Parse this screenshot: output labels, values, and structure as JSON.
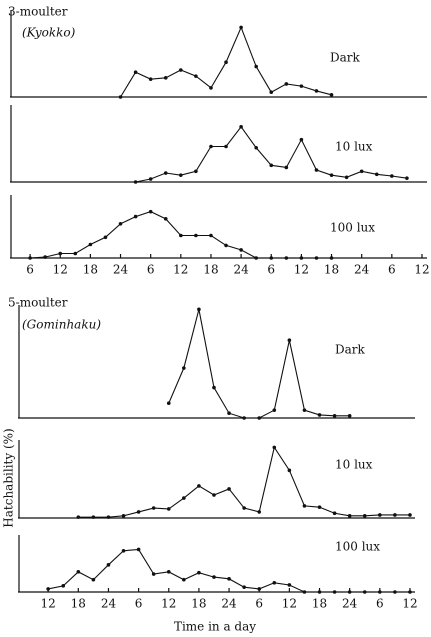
{
  "chart_data": [
    {
      "type": "line",
      "title": "3-moulter",
      "subtitle": "(Kyokko)",
      "label": "Dark",
      "x": [
        24,
        27,
        30,
        33,
        36,
        39,
        42,
        45,
        48,
        51,
        54,
        57,
        60,
        63,
        66
      ],
      "values": [
        0,
        5.7,
        4.1,
        4.4,
        6.2,
        4.8,
        2.1,
        8,
        16,
        7,
        1.1,
        3,
        2.5,
        1.4,
        0.5
      ],
      "xlim": [
        2,
        85
      ],
      "ylim": [
        0,
        20
      ]
    },
    {
      "type": "line",
      "label": "10 lux",
      "x": [
        27,
        30,
        33,
        36,
        39,
        42,
        45,
        48,
        51,
        54,
        57,
        60,
        63,
        66,
        69,
        72,
        75,
        78,
        81
      ],
      "values": [
        0,
        0.7,
        2.1,
        1.6,
        2.5,
        8.3,
        8.3,
        12.9,
        8,
        3.9,
        3.4,
        9.9,
        2.8,
        1.6,
        1.1,
        2.5,
        1.8,
        1.4,
        0.9
      ],
      "xlim": [
        2,
        85
      ],
      "ylim": [
        0,
        18
      ]
    },
    {
      "type": "line",
      "label": "100 lux",
      "x": [
        6,
        9,
        12,
        15,
        18,
        21,
        24,
        27,
        30,
        33,
        36,
        39,
        42,
        45,
        48,
        51,
        54,
        57,
        60,
        63,
        66
      ],
      "values": [
        0,
        0.2,
        1,
        1,
        3,
        4.6,
        7.6,
        9.2,
        10.3,
        8.7,
        5,
        5,
        5,
        2.8,
        1.8,
        0,
        0,
        0,
        0,
        0,
        0
      ],
      "xlim": [
        2,
        85
      ],
      "ylim": [
        0,
        14
      ],
      "xticks": [
        {
          "value": 6,
          "label": "6"
        },
        {
          "value": 12,
          "label": "12"
        },
        {
          "value": 18,
          "label": "18"
        },
        {
          "value": 24,
          "label": "24"
        },
        {
          "value": 30,
          "label": "6"
        },
        {
          "value": 36,
          "label": "12"
        },
        {
          "value": 42,
          "label": "18"
        },
        {
          "value": 48,
          "label": "24"
        },
        {
          "value": 54,
          "label": "6"
        },
        {
          "value": 60,
          "label": "12"
        },
        {
          "value": 66,
          "label": "18"
        },
        {
          "value": 72,
          "label": "24"
        },
        {
          "value": 78,
          "label": "6"
        },
        {
          "value": 84,
          "label": "12"
        }
      ]
    },
    {
      "type": "line",
      "title": "5-moulter",
      "subtitle": "(Gominhaku)",
      "label": "Dark",
      "x": [
        36,
        39,
        42,
        45,
        48,
        51,
        54,
        57,
        60,
        63,
        66,
        69,
        72
      ],
      "values": [
        3.4,
        11.5,
        25,
        7,
        1.1,
        0,
        0,
        1.8,
        17.9,
        1.8,
        0.7,
        0.5,
        0.5
      ],
      "xlim": [
        6,
        85
      ],
      "ylim": [
        0,
        26
      ]
    },
    {
      "type": "line",
      "label": "10 lux",
      "ylabel": "Hatchability (%)",
      "x": [
        18,
        21,
        24,
        27,
        30,
        33,
        36,
        39,
        42,
        45,
        48,
        51,
        54,
        57,
        60,
        63,
        66,
        69,
        72,
        75,
        78,
        81,
        84
      ],
      "values": [
        0.2,
        0.2,
        0.2,
        0.5,
        1.4,
        2.3,
        2.1,
        4.6,
        7.4,
        5.3,
        6.7,
        2.3,
        1.4,
        16.3,
        11,
        2.8,
        2.5,
        1.1,
        0.5,
        0.5,
        0.7,
        0.7,
        0.7
      ],
      "xlim": [
        6,
        85
      ],
      "ylim": [
        0,
        18
      ]
    },
    {
      "type": "line",
      "label": "100 lux",
      "xlabel": "Time in a day",
      "x": [
        12,
        15,
        18,
        21,
        24,
        27,
        30,
        33,
        36,
        39,
        42,
        45,
        48,
        51,
        54,
        57,
        60,
        63,
        66,
        69,
        72,
        75,
        78,
        81,
        84
      ],
      "values": [
        0.7,
        1.4,
        4.6,
        2.8,
        6.2,
        9.4,
        9.7,
        4.1,
        4.6,
        2.8,
        4.4,
        3.4,
        3,
        1.1,
        0.7,
        2.1,
        1.6,
        0,
        0,
        0,
        0,
        0,
        0,
        0,
        0
      ],
      "xlim": [
        6,
        85
      ],
      "ylim": [
        0,
        13
      ],
      "xticks": [
        {
          "value": 12,
          "label": "12"
        },
        {
          "value": 18,
          "label": "18"
        },
        {
          "value": 24,
          "label": "24"
        },
        {
          "value": 30,
          "label": "6"
        },
        {
          "value": 36,
          "label": "12"
        },
        {
          "value": 42,
          "label": "18"
        },
        {
          "value": 48,
          "label": "24"
        },
        {
          "value": 54,
          "label": "6"
        },
        {
          "value": 60,
          "label": "12"
        },
        {
          "value": 66,
          "label": "18"
        },
        {
          "value": 72,
          "label": "24"
        },
        {
          "value": 78,
          "label": "6"
        },
        {
          "value": 84,
          "label": "12"
        }
      ]
    }
  ]
}
